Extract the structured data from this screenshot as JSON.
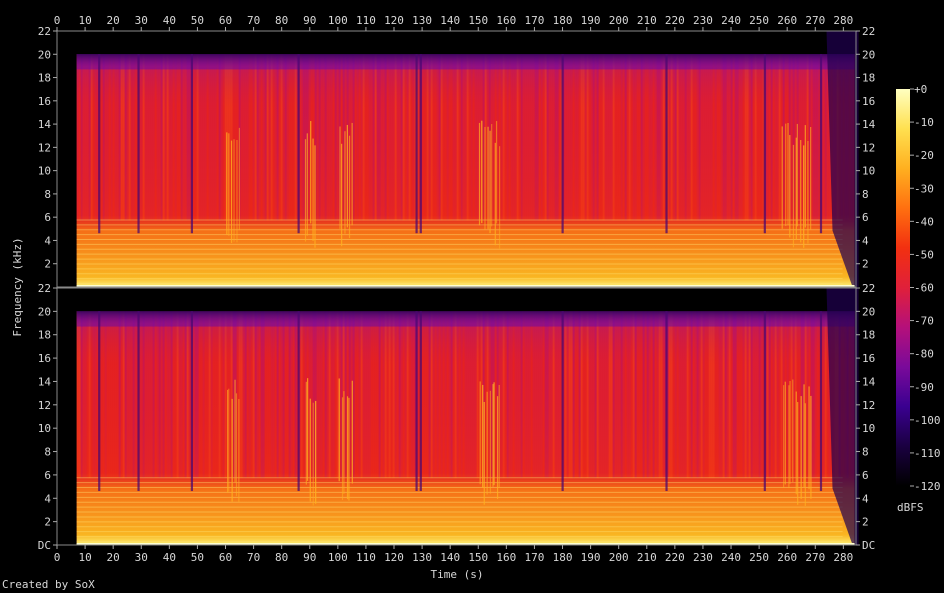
{
  "credit": "Created by SoX",
  "chart_data": {
    "type": "heatmap",
    "title": "",
    "xlabel": "Time (s)",
    "ylabel": "Frequency (kHz)",
    "x_ticks": [
      0,
      10,
      20,
      30,
      40,
      50,
      60,
      70,
      80,
      90,
      100,
      110,
      120,
      130,
      140,
      150,
      160,
      170,
      180,
      190,
      200,
      210,
      220,
      230,
      240,
      250,
      260,
      270,
      280
    ],
    "xlim": [
      0,
      284.5
    ],
    "y_ticks": [
      "DC",
      "2",
      "4",
      "6",
      "8",
      "10",
      "12",
      "14",
      "16",
      "18",
      "20",
      "22"
    ],
    "ylim_khz": [
      0,
      22
    ],
    "channels": [
      {
        "top_tick_label": "22",
        "bottom_tick_label": "22"
      },
      {
        "top_tick_label": "22",
        "bottom_tick_label": "DC"
      }
    ],
    "colorbar": {
      "label": "dBFS",
      "range": [
        -120,
        0
      ],
      "ticks": [
        "+0",
        "-10",
        "-20",
        "-30",
        "-40",
        "-50",
        "-60",
        "-70",
        "-80",
        "-90",
        "-100",
        "-110",
        "-120"
      ],
      "colors": [
        "#000000",
        "#1a0040",
        "#3a0090",
        "#7a0a9a",
        "#b5107a",
        "#e0203a",
        "#f23010",
        "#ff7010",
        "#ffb020",
        "#ffe050",
        "#ffffc0"
      ]
    },
    "audio_span_s": [
      7,
      284
    ],
    "dropouts_s": [
      15,
      29,
      48,
      86,
      128,
      129.5,
      180,
      217,
      252,
      272
    ],
    "loud_passages_s": [
      [
        60,
        65
      ],
      [
        88,
        92
      ],
      [
        100,
        105
      ],
      [
        150,
        158
      ],
      [
        258,
        268
      ]
    ],
    "grid": false
  }
}
